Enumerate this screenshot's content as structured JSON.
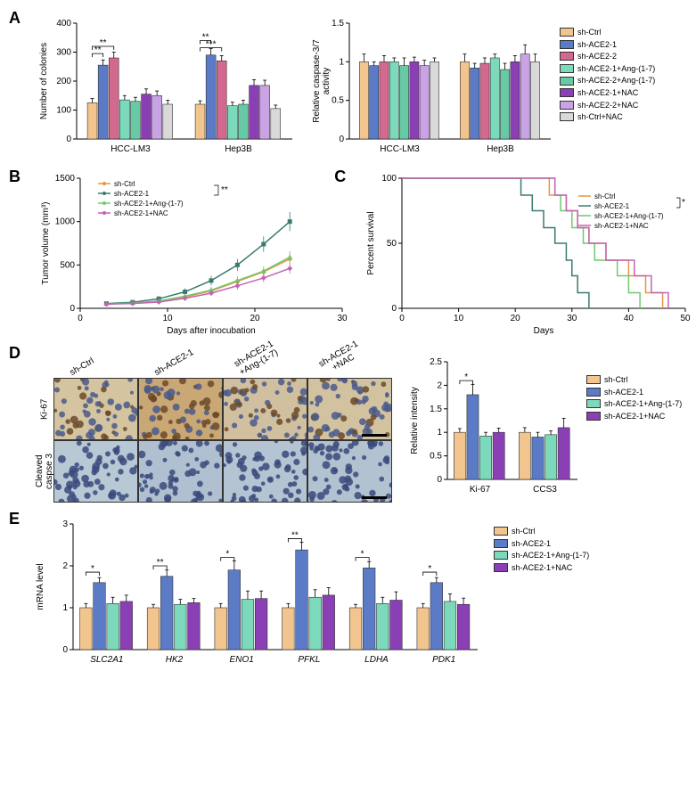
{
  "colors": {
    "ctrl": "#f2c48e",
    "ace2_1": "#5b7bc7",
    "ace2_2": "#d3698f",
    "ace2_1_ang": "#7cd9bb",
    "ace2_2_ang": "#67c9a5",
    "ace2_1_nac": "#8b3fb5",
    "ace2_2_nac": "#c9a3e5",
    "ctrl_nac": "#d9d9d9",
    "nac_purple": "#8b3fb5",
    "survival_ctrl": "#e89440",
    "survival_ace2": "#3a7a70",
    "survival_ang": "#6fc96f",
    "survival_nac": "#c562b5",
    "axis": "#000000",
    "grid": "#e0e0e0"
  },
  "groups8": [
    "sh-Ctrl",
    "sh-ACE2-1",
    "sh-ACE2-2",
    "sh-ACE2-1+Ang-(1-7)",
    "sh-ACE2-2+Ang-(1-7)",
    "sh-ACE2-1+NAC",
    "sh-ACE2-2+NAC",
    "sh-Ctrl+NAC"
  ],
  "groups4": [
    "sh-Ctrl",
    "sh-ACE2-1",
    "sh-ACE2-1+Ang-(1-7)",
    "sh-ACE2-1+NAC"
  ],
  "panelA": {
    "left": {
      "type": "grouped_bar",
      "ylabel": "Number of colonies",
      "ylim": [
        0,
        400
      ],
      "ytick_step": 100,
      "categories": [
        "HCC-LM3",
        "Hep3B"
      ],
      "series": [
        {
          "group": "sh-Ctrl",
          "color_key": "ctrl",
          "values": [
            125,
            120
          ],
          "err": [
            15,
            12
          ]
        },
        {
          "group": "sh-ACE2-1",
          "color_key": "ace2_1",
          "values": [
            255,
            290
          ],
          "err": [
            18,
            22
          ]
        },
        {
          "group": "sh-ACE2-2",
          "color_key": "ace2_2",
          "values": [
            280,
            270
          ],
          "err": [
            20,
            18
          ]
        },
        {
          "group": "sh-ACE2-1+Ang-(1-7)",
          "color_key": "ace2_1_ang",
          "values": [
            135,
            115
          ],
          "err": [
            15,
            12
          ]
        },
        {
          "group": "sh-ACE2-2+Ang-(1-7)",
          "color_key": "ace2_2_ang",
          "values": [
            130,
            120
          ],
          "err": [
            14,
            14
          ]
        },
        {
          "group": "sh-ACE2-1+NAC",
          "color_key": "ace2_1_nac",
          "values": [
            155,
            185
          ],
          "err": [
            18,
            20
          ]
        },
        {
          "group": "sh-ACE2-2+NAC",
          "color_key": "ace2_2_nac",
          "values": [
            150,
            185
          ],
          "err": [
            16,
            18
          ]
        },
        {
          "group": "sh-Ctrl+NAC",
          "color_key": "ctrl_nac",
          "values": [
            120,
            105
          ],
          "err": [
            14,
            12
          ]
        }
      ],
      "sig": [
        {
          "cat": 0,
          "from": 0,
          "to": 1,
          "label": "**",
          "y": 295
        },
        {
          "cat": 0,
          "from": 0,
          "to": 2,
          "label": "**",
          "y": 320
        },
        {
          "cat": 1,
          "from": 0,
          "to": 1,
          "label": "**",
          "y": 340
        },
        {
          "cat": 1,
          "from": 0,
          "to": 2,
          "label": "***",
          "y": 315
        }
      ]
    },
    "right": {
      "type": "grouped_bar",
      "ylabel": "Relative caspase-3/7\nactivity",
      "ylim": [
        0,
        1.5
      ],
      "ytick_step": 0.5,
      "categories": [
        "HCC-LM3",
        "Hep3B"
      ],
      "series": [
        {
          "group": "sh-Ctrl",
          "color_key": "ctrl",
          "values": [
            1.0,
            1.0
          ],
          "err": [
            0.1,
            0.1
          ]
        },
        {
          "group": "sh-ACE2-1",
          "color_key": "ace2_1",
          "values": [
            0.95,
            0.92
          ],
          "err": [
            0.05,
            0.06
          ]
        },
        {
          "group": "sh-ACE2-2",
          "color_key": "ace2_2",
          "values": [
            1.0,
            0.98
          ],
          "err": [
            0.08,
            0.07
          ]
        },
        {
          "group": "sh-ACE2-1+Ang-(1-7)",
          "color_key": "ace2_1_ang",
          "values": [
            1.0,
            1.05
          ],
          "err": [
            0.05,
            0.05
          ]
        },
        {
          "group": "sh-ACE2-2+Ang-(1-7)",
          "color_key": "ace2_2_ang",
          "values": [
            0.95,
            0.9
          ],
          "err": [
            0.1,
            0.08
          ]
        },
        {
          "group": "sh-ACE2-1+NAC",
          "color_key": "ace2_1_nac",
          "values": [
            1.0,
            1.0
          ],
          "err": [
            0.06,
            0.08
          ]
        },
        {
          "group": "sh-ACE2-2+NAC",
          "color_key": "ace2_2_nac",
          "values": [
            0.95,
            1.1
          ],
          "err": [
            0.07,
            0.12
          ]
        },
        {
          "group": "sh-Ctrl+NAC",
          "color_key": "ctrl_nac",
          "values": [
            1.0,
            1.0
          ],
          "err": [
            0.05,
            0.1
          ]
        }
      ]
    }
  },
  "panelB": {
    "type": "line",
    "xlabel": "Days after inocubation",
    "ylabel": "Tumor volume (mm³)",
    "xlim": [
      0,
      30
    ],
    "xtick_step": 10,
    "ylim": [
      0,
      1500
    ],
    "ytick_step": 500,
    "series": [
      {
        "group": "sh-Ctrl",
        "color_key": "survival_ctrl",
        "marker": "circle",
        "x": [
          3,
          6,
          9,
          12,
          15,
          18,
          21,
          24
        ],
        "y": [
          50,
          60,
          80,
          130,
          200,
          310,
          420,
          570
        ],
        "err": [
          15,
          20,
          25,
          30,
          40,
          50,
          55,
          70
        ]
      },
      {
        "group": "sh-ACE2-1",
        "color_key": "survival_ace2",
        "marker": "square",
        "x": [
          3,
          6,
          9,
          12,
          15,
          18,
          21,
          24
        ],
        "y": [
          55,
          70,
          110,
          190,
          320,
          500,
          740,
          1000
        ],
        "err": [
          18,
          22,
          30,
          40,
          55,
          70,
          90,
          110
        ]
      },
      {
        "group": "sh-ACE2-1+Ang-(1-7)",
        "color_key": "survival_ang",
        "marker": "triangle",
        "x": [
          3,
          6,
          9,
          12,
          15,
          18,
          21,
          24
        ],
        "y": [
          50,
          60,
          85,
          140,
          210,
          320,
          430,
          590
        ],
        "err": [
          15,
          18,
          22,
          28,
          38,
          48,
          55,
          70
        ]
      },
      {
        "group": "sh-ACE2-1+NAC",
        "color_key": "survival_nac",
        "marker": "diamond",
        "x": [
          3,
          6,
          9,
          12,
          15,
          18,
          21,
          24
        ],
        "y": [
          48,
          55,
          72,
          115,
          175,
          260,
          350,
          460
        ],
        "err": [
          14,
          16,
          20,
          25,
          32,
          42,
          48,
          58
        ]
      }
    ],
    "sig_label": "**"
  },
  "panelC": {
    "type": "survival",
    "xlabel": "Days",
    "ylabel": "Percent survival",
    "xlim": [
      0,
      50
    ],
    "xtick_step": 10,
    "ylim": [
      0,
      100
    ],
    "ytick_step": 50,
    "series": [
      {
        "group": "sh-Ctrl",
        "color_key": "survival_ctrl",
        "steps": [
          [
            0,
            100
          ],
          [
            26,
            100
          ],
          [
            26,
            87
          ],
          [
            29,
            87
          ],
          [
            29,
            75
          ],
          [
            31,
            75
          ],
          [
            31,
            62
          ],
          [
            33,
            62
          ],
          [
            33,
            50
          ],
          [
            36,
            50
          ],
          [
            36,
            37
          ],
          [
            40,
            37
          ],
          [
            40,
            25
          ],
          [
            43,
            25
          ],
          [
            43,
            12
          ],
          [
            46,
            12
          ],
          [
            46,
            0
          ]
        ]
      },
      {
        "group": "sh-ACE2-1",
        "color_key": "survival_ace2",
        "steps": [
          [
            0,
            100
          ],
          [
            21,
            100
          ],
          [
            21,
            87
          ],
          [
            23,
            87
          ],
          [
            23,
            75
          ],
          [
            25,
            75
          ],
          [
            25,
            62
          ],
          [
            27,
            62
          ],
          [
            27,
            50
          ],
          [
            29,
            50
          ],
          [
            29,
            37
          ],
          [
            30,
            37
          ],
          [
            30,
            25
          ],
          [
            31,
            25
          ],
          [
            31,
            12
          ],
          [
            33,
            12
          ],
          [
            33,
            0
          ]
        ]
      },
      {
        "group": "sh-ACE2-1+Ang-(1-7)",
        "color_key": "survival_ang",
        "steps": [
          [
            0,
            100
          ],
          [
            27,
            100
          ],
          [
            27,
            87
          ],
          [
            28,
            87
          ],
          [
            28,
            75
          ],
          [
            30,
            75
          ],
          [
            30,
            62
          ],
          [
            32,
            62
          ],
          [
            32,
            50
          ],
          [
            34,
            50
          ],
          [
            34,
            37
          ],
          [
            38,
            37
          ],
          [
            38,
            25
          ],
          [
            40,
            25
          ],
          [
            40,
            12
          ],
          [
            42,
            12
          ],
          [
            42,
            0
          ]
        ]
      },
      {
        "group": "sh-ACE2-1+NAC",
        "color_key": "survival_nac",
        "steps": [
          [
            0,
            100
          ],
          [
            27,
            100
          ],
          [
            27,
            87
          ],
          [
            29,
            87
          ],
          [
            29,
            75
          ],
          [
            31,
            75
          ],
          [
            31,
            62
          ],
          [
            33,
            62
          ],
          [
            33,
            50
          ],
          [
            36,
            50
          ],
          [
            36,
            37
          ],
          [
            41,
            37
          ],
          [
            41,
            25
          ],
          [
            44,
            25
          ],
          [
            44,
            12
          ],
          [
            47,
            12
          ],
          [
            47,
            0
          ]
        ]
      }
    ],
    "sig_label": "*"
  },
  "panelD": {
    "row_labels": [
      "Ki-67",
      "Cleaved caspse 3"
    ],
    "col_headers": [
      "sh-Ctrl",
      "sh-ACE2-1",
      "sh-ACE2-1\n+Ang-(1-7)",
      "sh-ACE2-1\n+NAC"
    ],
    "chart": {
      "type": "grouped_bar",
      "ylabel": "Relative intensity",
      "ylim": [
        0,
        2.5
      ],
      "ytick_step": 0.5,
      "categories": [
        "Ki-67",
        "CCS3"
      ],
      "series": [
        {
          "group": "sh-Ctrl",
          "color_key": "ctrl",
          "values": [
            1.0,
            1.0
          ],
          "err": [
            0.08,
            0.1
          ]
        },
        {
          "group": "sh-ACE2-1",
          "color_key": "ace2_1",
          "values": [
            1.8,
            0.9
          ],
          "err": [
            0.22,
            0.1
          ]
        },
        {
          "group": "sh-ACE2-1+Ang-(1-7)",
          "color_key": "ace2_1_ang",
          "values": [
            0.92,
            0.95
          ],
          "err": [
            0.08,
            0.08
          ]
        },
        {
          "group": "sh-ACE2-1+NAC",
          "color_key": "nac_purple",
          "values": [
            1.0,
            1.1
          ],
          "err": [
            0.09,
            0.2
          ]
        }
      ],
      "sig": [
        {
          "cat": 0,
          "from": 0,
          "to": 1,
          "label": "*",
          "y": 2.1
        }
      ]
    }
  },
  "panelE": {
    "type": "grouped_bar",
    "ylabel": "mRNA level",
    "ylim": [
      0,
      3
    ],
    "ytick_step": 1,
    "categories": [
      "SLC2A1",
      "HK2",
      "ENO1",
      "PFKL",
      "LDHA",
      "PDK1"
    ],
    "series": [
      {
        "group": "sh-Ctrl",
        "color_key": "ctrl",
        "values": [
          1.0,
          1.0,
          1.0,
          1.0,
          1.0,
          1.0
        ],
        "err": [
          0.1,
          0.08,
          0.1,
          0.1,
          0.08,
          0.1
        ]
      },
      {
        "group": "sh-ACE2-1",
        "color_key": "ace2_1",
        "values": [
          1.6,
          1.75,
          1.9,
          2.38,
          1.95,
          1.6
        ],
        "err": [
          0.12,
          0.15,
          0.22,
          0.18,
          0.15,
          0.12
        ]
      },
      {
        "group": "sh-ACE2-1+Ang-(1-7)",
        "color_key": "ace2_1_ang",
        "values": [
          1.1,
          1.08,
          1.2,
          1.25,
          1.1,
          1.15
        ],
        "err": [
          0.15,
          0.12,
          0.2,
          0.18,
          0.15,
          0.18
        ]
      },
      {
        "group": "sh-ACE2-1+NAC",
        "color_key": "nac_purple",
        "values": [
          1.15,
          1.12,
          1.22,
          1.3,
          1.18,
          1.08
        ],
        "err": [
          0.15,
          0.1,
          0.18,
          0.18,
          0.2,
          0.15
        ]
      }
    ],
    "sig": [
      {
        "cat": 0,
        "from": 0,
        "to": 1,
        "label": "*",
        "y": 1.85
      },
      {
        "cat": 1,
        "from": 0,
        "to": 1,
        "label": "**",
        "y": 2.0
      },
      {
        "cat": 2,
        "from": 0,
        "to": 1,
        "label": "*",
        "y": 2.2
      },
      {
        "cat": 3,
        "from": 0,
        "to": 1,
        "label": "**",
        "y": 2.65
      },
      {
        "cat": 4,
        "from": 0,
        "to": 1,
        "label": "*",
        "y": 2.2
      },
      {
        "cat": 5,
        "from": 0,
        "to": 1,
        "label": "*",
        "y": 1.85
      }
    ]
  },
  "labels": {
    "A": "A",
    "B": "B",
    "C": "C",
    "D": "D",
    "E": "E"
  }
}
